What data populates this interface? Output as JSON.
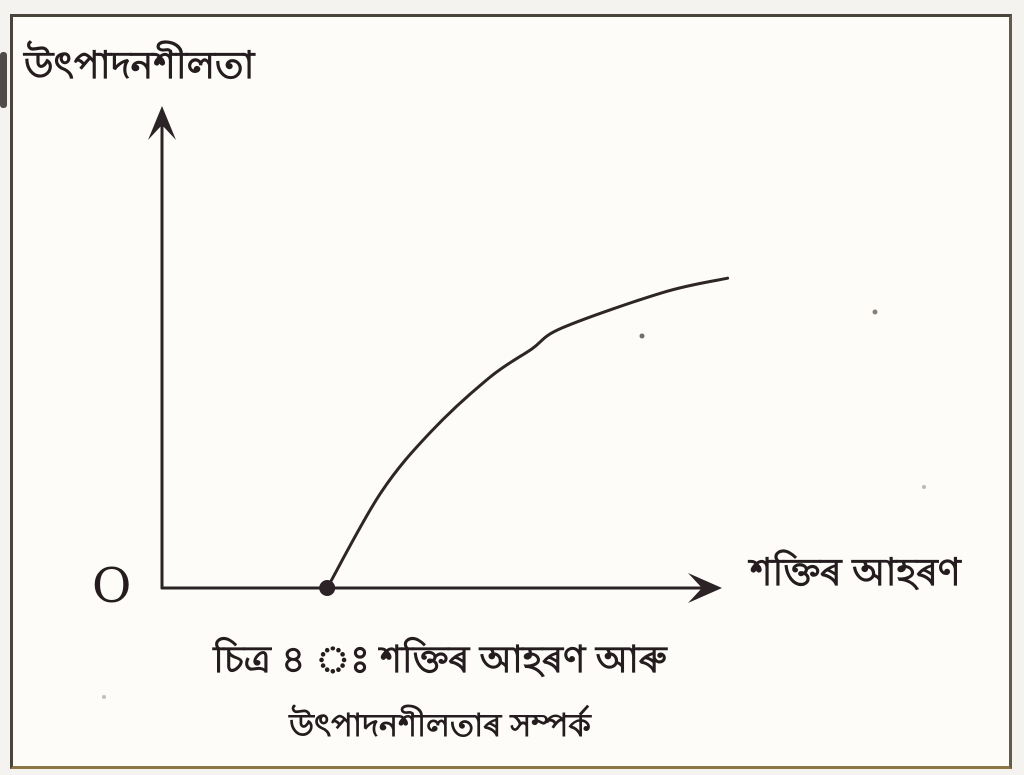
{
  "figure": {
    "origin_label": "O"
  },
  "axes": {
    "y_label": "উৎপাদনশীলতা",
    "x_label": "শক্তিৰ আহৰণ"
  },
  "caption": {
    "line1": "চিত্ৰ ৪ ঃ শক্তিৰ আহৰণ আৰু",
    "line2": "উৎপাদনশীলতাৰ সম্পৰ্ক"
  },
  "colors": {
    "ink": "#241c1e",
    "curve": "#2e2527",
    "paper": "#fdfcf8",
    "frame": "#49443c",
    "frame_bottom": "#8d7747"
  },
  "chart_data": {
    "type": "line",
    "title": "চিত্ৰ ৪ ঃ শক্তিৰ আহৰণ আৰু উৎপাদনশীলতাৰ সম্পৰ্ক",
    "xlabel": "শক্তিৰ আহৰণ",
    "ylabel": "উৎপাদনশীলতা",
    "grid": false,
    "legend": false,
    "x_tick_labels": [],
    "y_tick_labels": [],
    "xlim": [
      0,
      100
    ],
    "ylim": [
      0,
      100
    ],
    "series": [
      {
        "name": "productivity-vs-energy-curve",
        "shape": "concave-rising",
        "start_marker": "filled-dot-on-x-axis",
        "points": [
          [
            29.5,
            0
          ],
          [
            39,
            20
          ],
          [
            48,
            33
          ],
          [
            58.5,
            44.5
          ],
          [
            66,
            50.5
          ],
          [
            71.5,
            55
          ],
          [
            89.5,
            62.5
          ],
          [
            101,
            65.5
          ]
        ]
      }
    ]
  }
}
